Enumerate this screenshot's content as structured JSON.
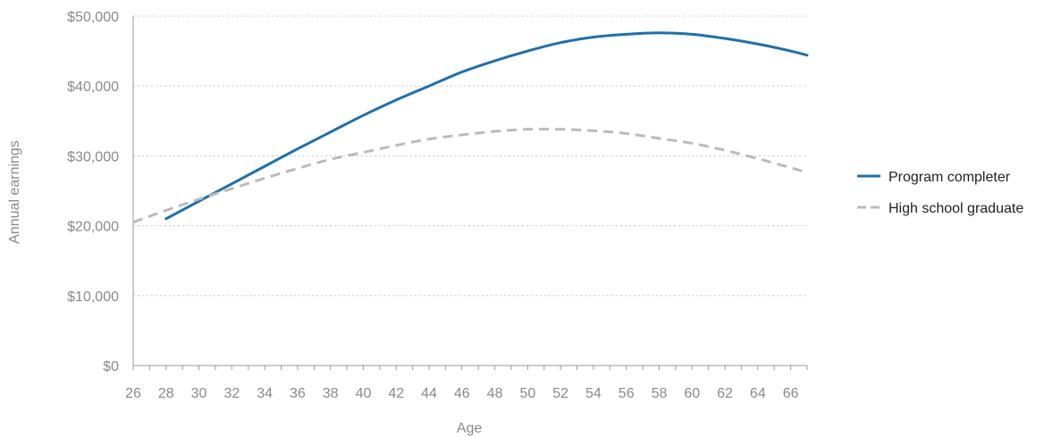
{
  "chart_data": {
    "type": "line",
    "title": "",
    "xlabel": "Age",
    "ylabel": "Annual earnings",
    "xlim": [
      26,
      67
    ],
    "ylim": [
      0,
      50000
    ],
    "x_ticks": [
      26,
      28,
      30,
      32,
      34,
      36,
      38,
      40,
      42,
      44,
      46,
      48,
      50,
      52,
      54,
      56,
      58,
      60,
      62,
      64,
      66
    ],
    "y_ticks": [
      {
        "value": 0,
        "label": "$0"
      },
      {
        "value": 10000,
        "label": "$10,000"
      },
      {
        "value": 20000,
        "label": "$20,000"
      },
      {
        "value": 30000,
        "label": "$30,000"
      },
      {
        "value": 40000,
        "label": "$40,000"
      },
      {
        "value": 50000,
        "label": "$50,000"
      }
    ],
    "grid": "horizontal-dotted",
    "legend_position": "right",
    "series": [
      {
        "name": "Program completer",
        "color": "#1f6fae",
        "style": "solid",
        "x": [
          28,
          30,
          32,
          34,
          36,
          38,
          40,
          42,
          44,
          46,
          48,
          50,
          52,
          54,
          56,
          58,
          60,
          62,
          64,
          66,
          67
        ],
        "y": [
          21000,
          23500,
          26000,
          28500,
          31000,
          33400,
          35800,
          38000,
          40000,
          42000,
          43600,
          45000,
          46200,
          47000,
          47400,
          47600,
          47400,
          46800,
          46000,
          45000,
          44400
        ]
      },
      {
        "name": "High school graduate",
        "color": "#bbbbbb",
        "style": "dashed",
        "x": [
          26,
          28,
          30,
          32,
          34,
          36,
          38,
          40,
          42,
          44,
          46,
          48,
          50,
          52,
          54,
          56,
          58,
          60,
          62,
          64,
          66,
          67
        ],
        "y": [
          20500,
          22200,
          23800,
          25300,
          26800,
          28200,
          29500,
          30500,
          31500,
          32400,
          33000,
          33500,
          33800,
          33800,
          33600,
          33200,
          32500,
          31800,
          30800,
          29600,
          28300,
          27600
        ]
      }
    ]
  }
}
